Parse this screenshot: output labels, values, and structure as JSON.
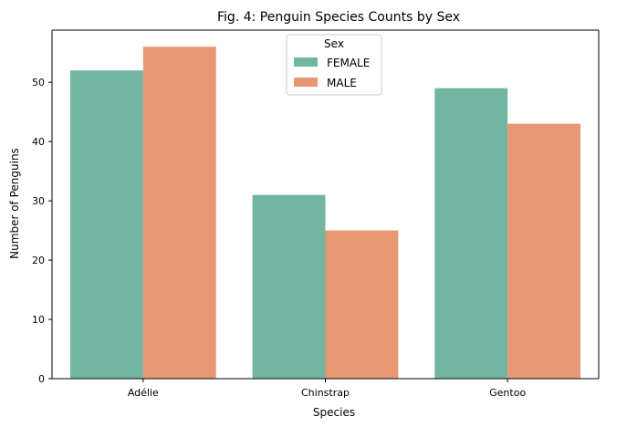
{
  "chart_data": {
    "type": "bar",
    "title": "Fig. 4: Penguin Species Counts by Sex",
    "xlabel": "Species",
    "ylabel": "Number of Penguins",
    "categories": [
      "Adélie",
      "Chinstrap",
      "Gentoo"
    ],
    "series": [
      {
        "name": "FEMALE",
        "values": [
          52,
          31,
          49
        ],
        "color": "#72b6a1"
      },
      {
        "name": "MALE",
        "values": [
          56,
          25,
          43
        ],
        "color": "#e99675"
      }
    ],
    "ylim": [
      0,
      58.8
    ],
    "yticks": [
      0,
      10,
      20,
      30,
      40,
      50
    ],
    "grid": false,
    "legend": {
      "title": "Sex",
      "placement": "top-center"
    }
  }
}
